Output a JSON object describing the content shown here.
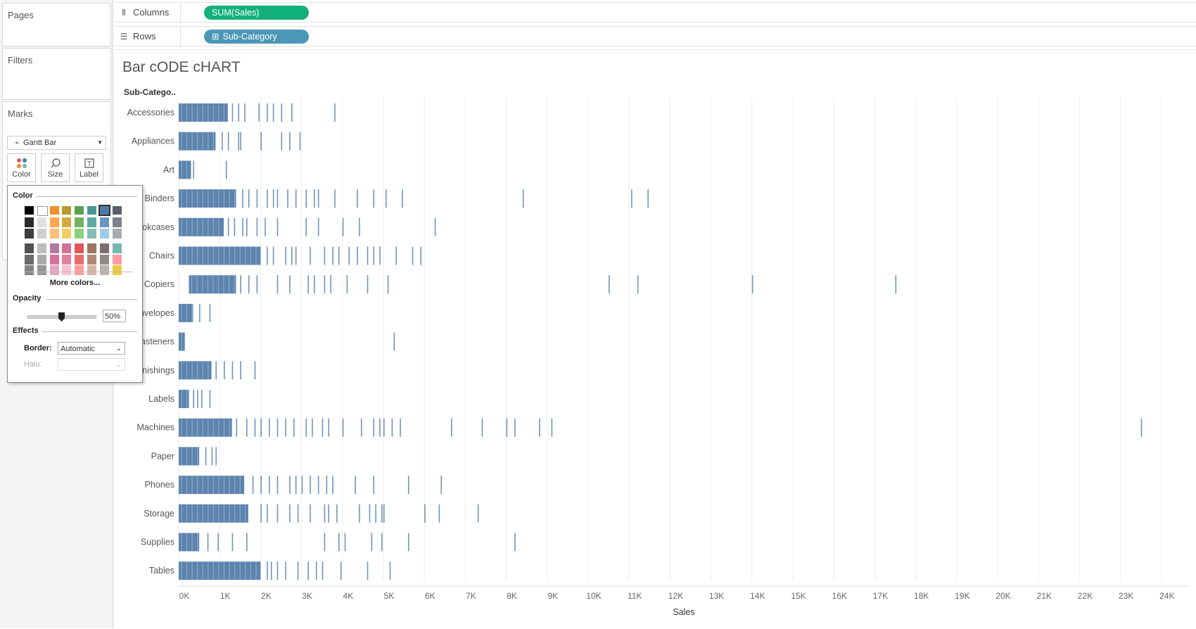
{
  "panels": {
    "pages": "Pages",
    "filters": "Filters",
    "marks": "Marks"
  },
  "marks_card": {
    "type": "Gantt Bar",
    "buttons": [
      {
        "name": "color",
        "label": "Color"
      },
      {
        "name": "size",
        "label": "Size"
      },
      {
        "name": "label",
        "label": "Label"
      }
    ]
  },
  "shelves": {
    "columns": {
      "label": "Columns",
      "pill": "SUM(Sales)",
      "pill_color": "#12b07a"
    },
    "rows": {
      "label": "Rows",
      "pill": "Sub-Category",
      "pill_icon": "⊞",
      "pill_color": "#4b98b6"
    }
  },
  "color_popup": {
    "color_label": "Color",
    "more_colors": "More colors...",
    "opacity_label": "Opacity",
    "opacity_value": "50%",
    "opacity_fraction": 0.5,
    "effects_label": "Effects",
    "border_label": "Border:",
    "border_value": "Automatic",
    "halo_label": "Halo:",
    "swatch_columns": [
      [
        "#000000",
        "#2b2b2b",
        "#3e3e3e",
        "#525252",
        "#6b6b6b",
        "#848484"
      ],
      [
        "#ffffff",
        "#e0e0e0",
        "#cfcfcf",
        "#bdbdbd",
        "#a9a9a9",
        "#969696"
      ],
      [
        "#f28e2b",
        "#ffa54f",
        "#ffbe7d",
        "#b07aa1",
        "#d37295",
        "#e4a6c4"
      ],
      [
        "#b6992d",
        "#d4a843",
        "#f1ce63",
        "#d37295",
        "#e3829f",
        "#fabfd2"
      ],
      [
        "#59a14f",
        "#72b35f",
        "#8cd17d",
        "#e15759",
        "#e86d6d",
        "#ff9d9a"
      ],
      [
        "#499894",
        "#5fa8a4",
        "#86bcb6",
        "#9d7660",
        "#b08a77",
        "#d7b5a6"
      ],
      [
        "#4e79a7",
        "#6b93c0",
        "#a0cbe8",
        "#79706e",
        "#938a87",
        "#bab0ac"
      ],
      [
        "#59606b",
        "#7a828c",
        "#a8abb0",
        "#76b7b2",
        "#ff9da7",
        "#edc948"
      ]
    ],
    "selected_swatch": "#4e79a7"
  },
  "chart_data": {
    "type": "bar",
    "title": "Bar cODE cHART",
    "row_header": "Sub-Catego..",
    "xlabel": "Sales",
    "xlim": [
      0,
      24000
    ],
    "grid": true,
    "x_ticks": [
      "0K",
      "1K",
      "2K",
      "3K",
      "4K",
      "5K",
      "6K",
      "7K",
      "8K",
      "9K",
      "10K",
      "11K",
      "12K",
      "13K",
      "14K",
      "15K",
      "16K",
      "17K",
      "18K",
      "19K",
      "20K",
      "21K",
      "22K",
      "23K",
      "24K"
    ],
    "mark_color": "#4e79a7",
    "categories": [
      "Accessories",
      "Appliances",
      "Art",
      "Binders",
      "Bookcases",
      "Chairs",
      "Copiers",
      "Envelopes",
      "Fasteners",
      "Furnishings",
      "Labels",
      "Machines",
      "Paper",
      "Phones",
      "Storage",
      "Supplies",
      "Tables"
    ],
    "dense_ranges": [
      [
        0,
        1200
      ],
      [
        0,
        900
      ],
      [
        0,
        300
      ],
      [
        0,
        1400
      ],
      [
        0,
        1100
      ],
      [
        0,
        2000
      ],
      [
        250,
        1400
      ],
      [
        0,
        350
      ],
      [
        0,
        150
      ],
      [
        0,
        800
      ],
      [
        0,
        250
      ],
      [
        0,
        1300
      ],
      [
        0,
        500
      ],
      [
        0,
        1600
      ],
      [
        0,
        1700
      ],
      [
        0,
        500
      ],
      [
        0,
        2000
      ]
    ],
    "sparse_values": [
      [
        1300,
        1450,
        1600,
        1950,
        2150,
        2300,
        2500,
        2750,
        3800
      ],
      [
        1050,
        1200,
        1450,
        1500,
        2000,
        2500,
        2700,
        2950
      ],
      [
        350,
        1150
      ],
      [
        1550,
        1700,
        1900,
        2150,
        2300,
        2400,
        2650,
        2850,
        3100,
        3300,
        3400,
        3800,
        4350,
        4750,
        5050,
        5450,
        8400,
        11050,
        11450
      ],
      [
        1200,
        1350,
        1550,
        1650,
        1900,
        2100,
        2400,
        3100,
        3400,
        4000,
        4400,
        6250
      ],
      [
        2150,
        2300,
        2600,
        2750,
        2850,
        3200,
        3550,
        3750,
        3900,
        4150,
        4350,
        4600,
        4750,
        4900,
        5300,
        5700,
        5900
      ],
      [
        1500,
        1700,
        1900,
        2400,
        2700,
        3150,
        3300,
        3550,
        3700,
        4100,
        4600,
        5100,
        10500,
        11200,
        14000,
        17500
      ],
      [
        500,
        750
      ],
      [
        5250
      ],
      [
        900,
        1100,
        1300,
        1500,
        1850
      ],
      [
        350,
        450,
        550,
        750
      ],
      [
        1400,
        1650,
        1850,
        2000,
        2200,
        2400,
        2600,
        2800,
        3100,
        3250,
        3500,
        3650,
        4000,
        4450,
        4750,
        4900,
        5000,
        5200,
        5400,
        6650,
        7400,
        8000,
        8200,
        8800,
        9100,
        23500
      ],
      [
        650,
        800,
        900
      ],
      [
        1800,
        2000,
        2200,
        2400,
        2700,
        2850,
        3000,
        3200,
        3400,
        3600,
        3750,
        4300,
        4750,
        5600,
        6400
      ],
      [
        2000,
        2150,
        2400,
        2700,
        2900,
        3200,
        3550,
        3650,
        3850,
        4400,
        4650,
        4800,
        4950,
        5000,
        6000,
        6350,
        7300
      ],
      [
        700,
        950,
        1300,
        1650,
        3550,
        3900,
        4050,
        4700,
        4950,
        5600,
        8200
      ],
      [
        2150,
        2250,
        2400,
        2600,
        2900,
        3150,
        3350,
        3500,
        3950,
        4600,
        5150
      ]
    ]
  }
}
